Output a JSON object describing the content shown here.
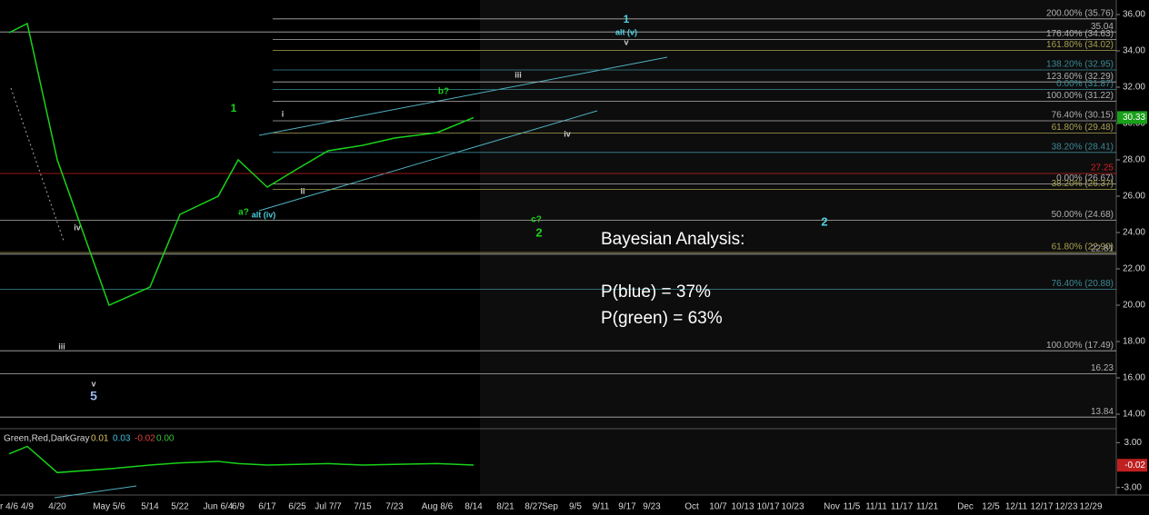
{
  "chart_data": [
    {
      "type": "line",
      "categories": [
        "r 4/6",
        "4/9",
        "4/20",
        "May 5/6",
        "5/14",
        "5/22",
        "Jun 6/4",
        "6/9",
        "6/17",
        "6/25",
        "Jul 7/7",
        "7/15",
        "7/23",
        "Aug 8/6",
        "8/14",
        "8/21",
        "8/27",
        "Sep",
        "9/5",
        "9/11",
        "9/17",
        "9/23",
        "Oct",
        "10/7",
        "10/13",
        "10/17",
        "10/23",
        "Nov",
        "11/5",
        "11/11",
        "11/17",
        "11/21",
        "Dec",
        "12/5",
        "12/11",
        "12/17",
        "12/23",
        "12/29"
      ],
      "series": [
        {
          "color": "#19d219",
          "values": [
            35,
            35.5,
            28,
            20,
            21,
            25,
            26,
            28,
            26.5,
            27.5,
            28.5,
            28.8,
            29.2,
            29.5,
            30.33,
            null,
            null,
            null,
            null,
            null,
            null,
            null,
            null,
            null,
            null,
            null,
            null,
            null,
            null,
            null,
            null,
            null,
            null,
            null,
            null,
            null,
            null,
            null
          ]
        }
      ],
      "value_labels": [
        "30.33"
      ],
      "ylim": [
        13.3,
        36.8
      ],
      "yticks": [
        {
          "value": 14,
          "label": "14.00"
        },
        {
          "value": 16,
          "label": "16.00"
        },
        {
          "value": 18,
          "label": "18.00"
        },
        {
          "value": 20,
          "label": "20.00"
        },
        {
          "value": 22,
          "label": "22.00"
        },
        {
          "value": 24,
          "label": "24.00"
        },
        {
          "value": 26,
          "label": "26.00"
        },
        {
          "value": 28,
          "label": "28.00"
        },
        {
          "value": 30,
          "label": "30.00"
        },
        {
          "value": 32,
          "label": "32.00"
        },
        {
          "value": 34,
          "label": "34.00"
        },
        {
          "value": 36,
          "label": "36.00"
        }
      ],
      "levels": [
        {
          "value": 35.76,
          "label": "200.00% (35.76)",
          "color": "#b0b0b0"
        },
        {
          "value": 34.63,
          "label": "176.40% (34.63)",
          "color": "#b0b0b0"
        },
        {
          "value": 34.02,
          "label": "161.80% (34.02)",
          "color": "#a8a050"
        },
        {
          "value": 32.95,
          "label": "138.20% (32.95)",
          "color": "#3b8a96"
        },
        {
          "value": 32.29,
          "label": "123.60% (32.29)",
          "color": "#b0b0b0"
        },
        {
          "value": 31.87,
          "label": "0.00% (31.87)",
          "color": "#3b8a96"
        },
        {
          "value": 31.22,
          "label": "100.00% (31.22)",
          "color": "#b0b0b0"
        },
        {
          "value": 30.15,
          "label": "76.40% (30.15)",
          "color": "#b0b0b0"
        },
        {
          "value": 29.48,
          "label": "61.80% (29.48)",
          "color": "#a8a050"
        },
        {
          "value": 28.41,
          "label": "38.20% (28.41)",
          "color": "#3b8a96"
        },
        {
          "value": 26.67,
          "label": "0.00% (26.67)",
          "color": "#b0b0b0"
        },
        {
          "value": 26.37,
          "label": "38.20% (26.37)",
          "color": "#a8a050"
        },
        {
          "value": 24.68,
          "label": "50.00% (24.68)",
          "color": "#b0b0b0"
        },
        {
          "value": 22.9,
          "label": "61.80% (22.90)",
          "color": "#a8a050"
        },
        {
          "value": 20.88,
          "label": "76.40% (20.88)",
          "color": "#3b8a96"
        },
        {
          "value": 17.49,
          "label": "100.00% (17.49)",
          "color": "#b0b0b0"
        }
      ],
      "price_lines": [
        {
          "value": 35.04,
          "label": "35.04",
          "color": "#b0b0b0"
        },
        {
          "value": 27.25,
          "label": "27.25",
          "color": "#d02020"
        },
        {
          "value": 22.81,
          "label": "22.81",
          "color": "#b0b0b0"
        },
        {
          "value": 16.23,
          "label": "16.23",
          "color": "#b0b0b0"
        },
        {
          "value": 13.84,
          "label": "13.84",
          "color": "#b0b0b0"
        }
      ],
      "wave_labels": [
        "1",
        "1",
        "alt (v)",
        "v",
        "iii",
        "b?",
        "i",
        "iv",
        "ii",
        "a?",
        "alt (iv)",
        "c?",
        "2",
        "2",
        "iv",
        "iii",
        "v",
        "5"
      ],
      "annotation": [
        "Bayesian Analysis:",
        "P(blue) = 37%",
        "P(green) = 63%"
      ]
    },
    {
      "type": "line",
      "legend": "Green,Red,DarkGray",
      "readouts": [
        {
          "label": "0.01",
          "color": "#e0c060"
        },
        {
          "label": "0.03",
          "color": "#40c0e0"
        },
        {
          "label": "-0.02",
          "color": "#e04040"
        },
        {
          "label": "0.00",
          "color": "#40c040"
        }
      ],
      "series": [
        {
          "color": "#19d219",
          "values": [
            1.5,
            2.5,
            -1,
            -0.5,
            0,
            0.3,
            0.5,
            0.2,
            0,
            0.1,
            0.2,
            0,
            0.1,
            0.2,
            0.01
          ]
        }
      ],
      "value_labels": [
        "-0.02"
      ],
      "current": -0.02,
      "ylim": [
        -4,
        4.5
      ],
      "yticks": [
        {
          "value": 3,
          "label": "3.00"
        },
        {
          "value": -3,
          "label": "-3.00"
        }
      ]
    }
  ]
}
